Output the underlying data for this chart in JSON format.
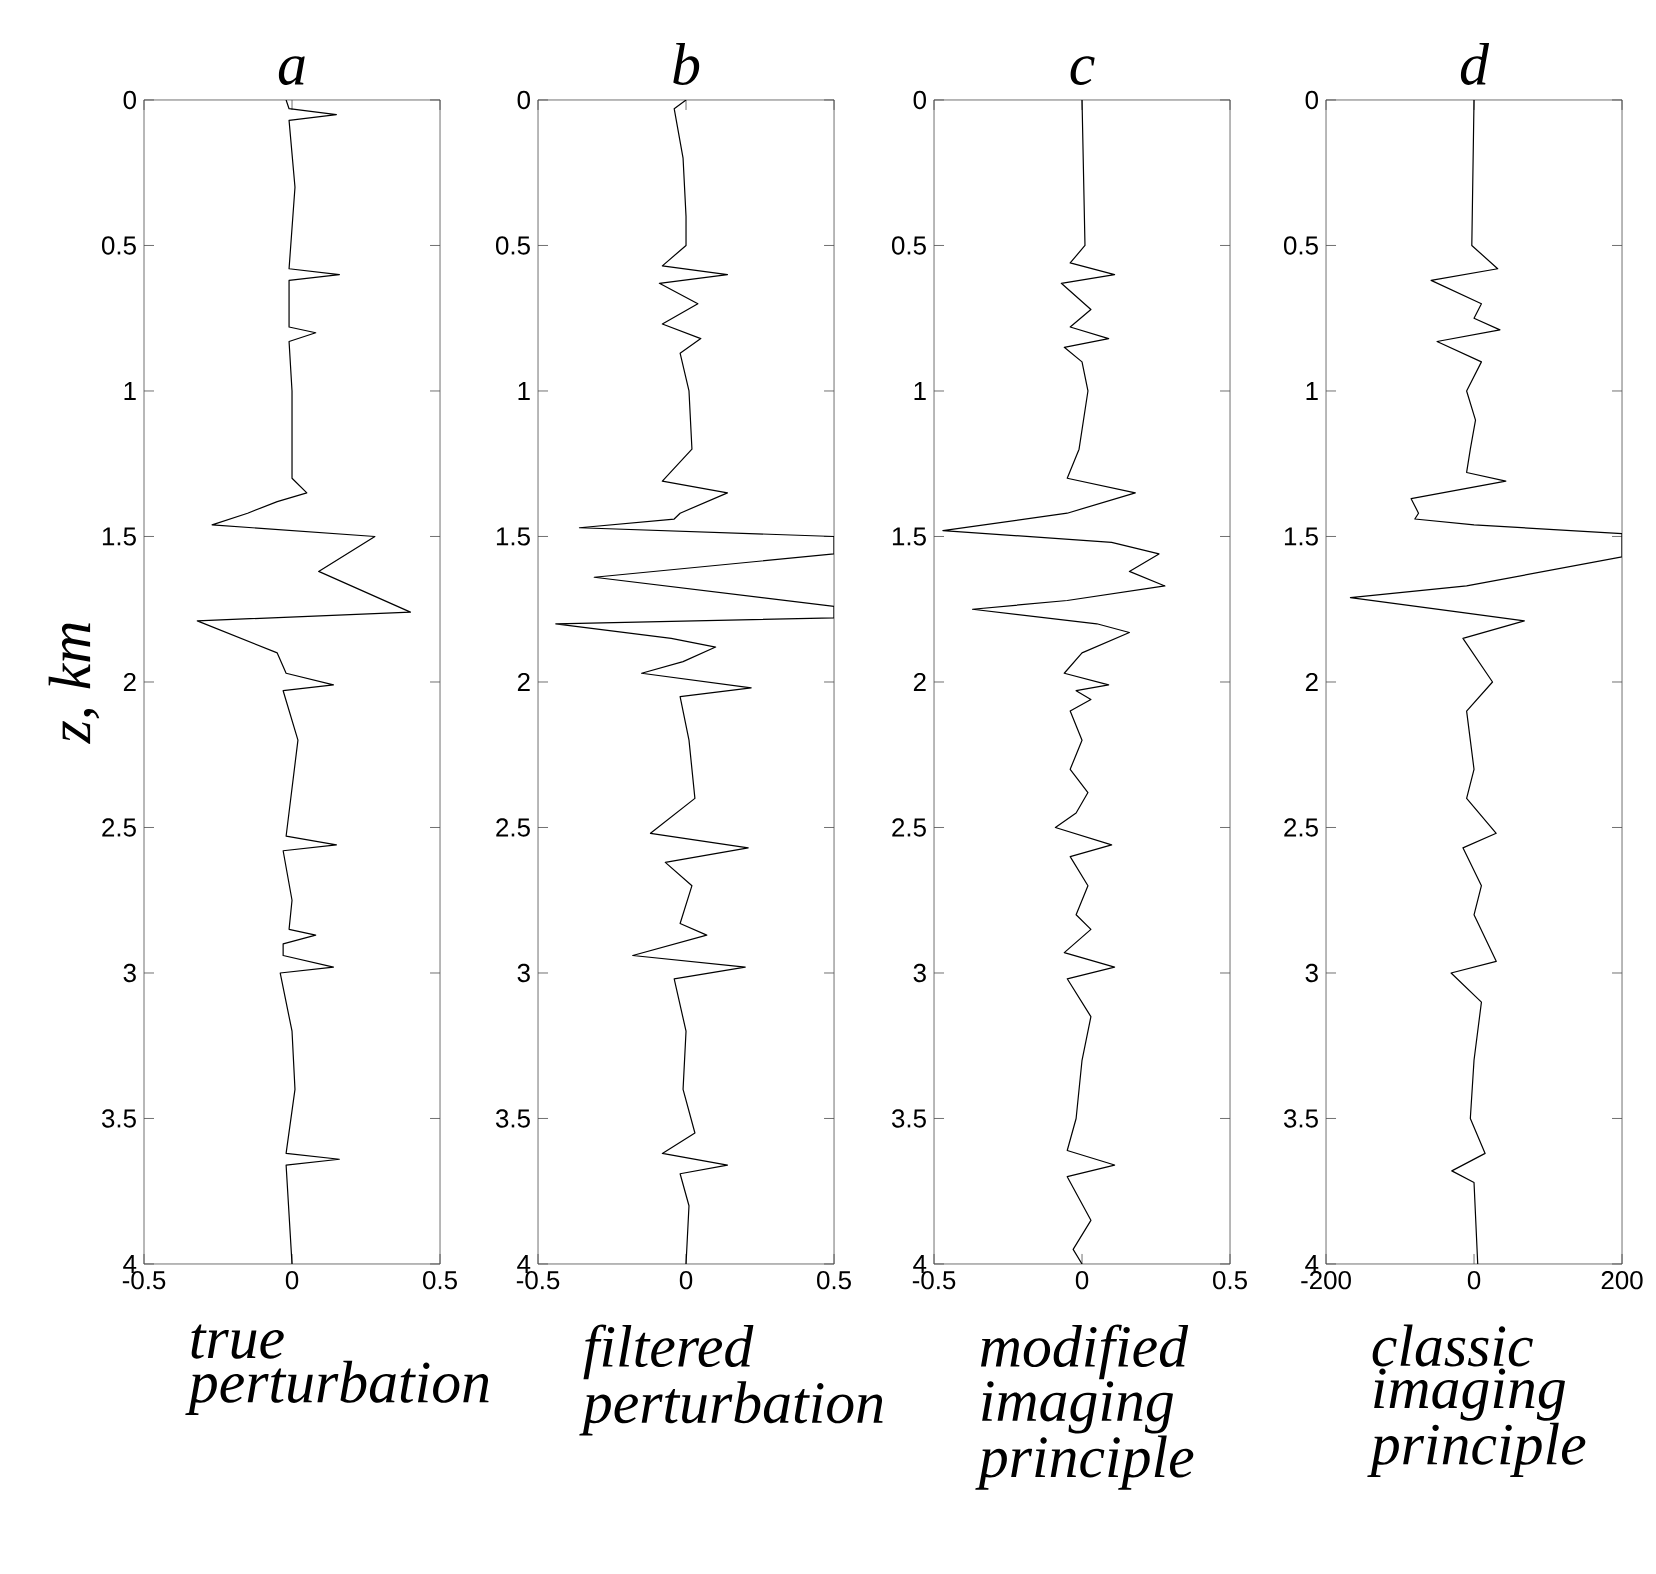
{
  "chart_data": [
    {
      "type": "line",
      "title": "a",
      "xlabel": "true perturbation",
      "ylabel": "z, km",
      "xlim": [
        -0.5,
        0.5
      ],
      "xticks": [
        -0.5,
        0,
        0.5
      ],
      "ylim": [
        4,
        0
      ],
      "yticks": [
        0,
        0.5,
        1,
        1.5,
        2,
        2.5,
        3,
        3.5,
        4
      ],
      "series": [
        {
          "color": "#000000",
          "x": [
            -0.02,
            -0.01,
            0.15,
            -0.01,
            0.01,
            -0.01,
            0.16,
            -0.01,
            -0.01,
            0.08,
            -0.01,
            0.0,
            0.0,
            0.05,
            -0.05,
            -0.15,
            -0.27,
            0.28,
            0.09,
            0.4,
            -0.32,
            -0.05,
            -0.02,
            0.14,
            -0.03,
            0.02,
            -0.02,
            0.15,
            -0.03,
            0.0,
            -0.01,
            0.08,
            -0.03,
            -0.03,
            0.14,
            -0.04,
            0.0,
            0.01,
            -0.02,
            0.16,
            -0.02,
            0.0
          ],
          "values": [
            0.0,
            0.03,
            0.05,
            0.07,
            0.3,
            0.58,
            0.6,
            0.62,
            0.78,
            0.8,
            0.83,
            1.0,
            1.3,
            1.35,
            1.38,
            1.42,
            1.46,
            1.5,
            1.62,
            1.76,
            1.79,
            1.9,
            1.97,
            2.01,
            2.03,
            2.2,
            2.53,
            2.56,
            2.58,
            2.75,
            2.85,
            2.87,
            2.9,
            2.94,
            2.98,
            3.0,
            3.2,
            3.4,
            3.62,
            3.64,
            3.66,
            4.0
          ]
        }
      ]
    },
    {
      "type": "line",
      "title": "b",
      "xlabel": "filtered perturbation",
      "xlim": [
        -0.5,
        0.5
      ],
      "xticks": [
        -0.5,
        0,
        0.5
      ],
      "ylim": [
        4,
        0
      ],
      "yticks": [
        0,
        0.5,
        1,
        1.5,
        2,
        2.5,
        3,
        3.5,
        4
      ],
      "series": [
        {
          "color": "#000000",
          "x": [
            0.0,
            -0.04,
            -0.01,
            0.0,
            0.0,
            -0.08,
            0.14,
            -0.09,
            0.04,
            -0.08,
            0.05,
            -0.02,
            0.01,
            0.02,
            -0.08,
            0.14,
            -0.02,
            -0.04,
            -0.36,
            0.5,
            0.5,
            -0.31,
            0.5,
            0.5,
            -0.44,
            -0.05,
            0.1,
            -0.01,
            -0.15,
            0.22,
            -0.02,
            0.01,
            0.03,
            -0.12,
            0.21,
            -0.07,
            0.02,
            -0.02,
            0.07,
            -0.18,
            0.2,
            -0.04,
            0.0,
            -0.01,
            0.03,
            -0.08,
            0.14,
            -0.02,
            0.01,
            0.0
          ],
          "values": [
            0.0,
            0.03,
            0.2,
            0.4,
            0.5,
            0.57,
            0.6,
            0.63,
            0.7,
            0.77,
            0.82,
            0.87,
            1.0,
            1.2,
            1.31,
            1.35,
            1.42,
            1.44,
            1.47,
            1.5,
            1.56,
            1.64,
            1.74,
            1.78,
            1.8,
            1.85,
            1.88,
            1.93,
            1.97,
            2.02,
            2.05,
            2.2,
            2.4,
            2.52,
            2.57,
            2.62,
            2.7,
            2.83,
            2.87,
            2.94,
            2.98,
            3.02,
            3.2,
            3.4,
            3.55,
            3.62,
            3.66,
            3.69,
            3.8,
            4.0
          ]
        }
      ]
    },
    {
      "type": "line",
      "title": "c",
      "xlabel": "modified imaging principle",
      "xlim": [
        -0.5,
        0.5
      ],
      "xticks": [
        -0.5,
        0,
        0.5
      ],
      "ylim": [
        4,
        0
      ],
      "yticks": [
        0,
        0.5,
        1,
        1.5,
        2,
        2.5,
        3,
        3.5,
        4
      ],
      "series": [
        {
          "color": "#000000",
          "x": [
            0.0,
            0.01,
            -0.04,
            0.11,
            -0.07,
            0.03,
            -0.04,
            0.09,
            -0.06,
            0.0,
            0.02,
            -0.01,
            -0.05,
            0.18,
            -0.05,
            -0.47,
            0.1,
            0.26,
            0.16,
            0.28,
            -0.05,
            -0.37,
            0.05,
            0.16,
            0.0,
            -0.06,
            0.09,
            -0.02,
            0.03,
            -0.04,
            0.0,
            -0.04,
            0.02,
            -0.02,
            -0.09,
            0.1,
            -0.04,
            0.02,
            -0.02,
            0.03,
            -0.06,
            0.11,
            -0.05,
            0.03,
            0.0,
            -0.02,
            -0.05,
            0.11,
            -0.05,
            0.03,
            -0.03,
            0.0
          ],
          "values": [
            0.0,
            0.5,
            0.56,
            0.6,
            0.63,
            0.72,
            0.78,
            0.82,
            0.85,
            0.9,
            1.0,
            1.2,
            1.3,
            1.35,
            1.42,
            1.48,
            1.52,
            1.56,
            1.62,
            1.67,
            1.72,
            1.75,
            1.8,
            1.83,
            1.9,
            1.97,
            2.01,
            2.03,
            2.06,
            2.1,
            2.2,
            2.3,
            2.38,
            2.45,
            2.5,
            2.56,
            2.6,
            2.7,
            2.8,
            2.85,
            2.93,
            2.98,
            3.02,
            3.15,
            3.3,
            3.5,
            3.61,
            3.66,
            3.7,
            3.85,
            3.95,
            4.0
          ]
        }
      ]
    },
    {
      "type": "line",
      "title": "d",
      "xlabel": "classic imaging principle",
      "xlim": [
        -200,
        200
      ],
      "xticks": [
        -200,
        0,
        200
      ],
      "ylim": [
        4,
        0
      ],
      "yticks": [
        0,
        0.5,
        1,
        1.5,
        2,
        2.5,
        3,
        3.5,
        4
      ],
      "series": [
        {
          "color": "#000000",
          "x": [
            0,
            -3,
            32,
            -58,
            10,
            0,
            35,
            -50,
            10,
            -10,
            2,
            -5,
            -10,
            43,
            -85,
            -75,
            -80,
            0,
            200,
            200,
            -10,
            -167,
            -20,
            68,
            -15,
            25,
            -10,
            0,
            -10,
            30,
            -15,
            10,
            0,
            30,
            -31,
            10,
            0,
            -5,
            15,
            -30,
            0,
            5
          ],
          "values": [
            0.0,
            0.5,
            0.58,
            0.62,
            0.7,
            0.75,
            0.79,
            0.83,
            0.9,
            1.0,
            1.1,
            1.2,
            1.28,
            1.31,
            1.37,
            1.42,
            1.44,
            1.46,
            1.49,
            1.57,
            1.67,
            1.71,
            1.76,
            1.79,
            1.85,
            2.0,
            2.1,
            2.3,
            2.4,
            2.52,
            2.57,
            2.7,
            2.8,
            2.96,
            3.0,
            3.1,
            3.3,
            3.5,
            3.62,
            3.68,
            3.72,
            4.0
          ]
        }
      ]
    }
  ]
}
